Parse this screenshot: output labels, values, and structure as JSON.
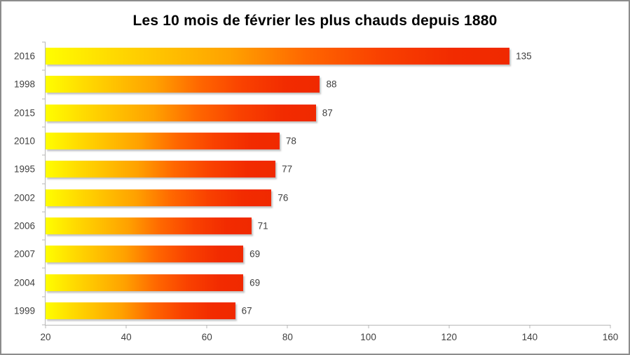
{
  "chart_data": {
    "type": "bar",
    "orientation": "horizontal",
    "title": "Les 10 mois de février les plus chauds depuis 1880",
    "categories": [
      "2016",
      "1998",
      "2015",
      "2010",
      "1995",
      "2002",
      "2006",
      "2007",
      "2004",
      "1999"
    ],
    "values": [
      135,
      88,
      87,
      78,
      77,
      76,
      71,
      69,
      69,
      67
    ],
    "value_labels": [
      "135",
      "88",
      "87",
      "78",
      "77",
      "76",
      "71",
      "69",
      "69",
      "67"
    ],
    "x_ticks": [
      20,
      40,
      60,
      80,
      100,
      120,
      140,
      160
    ],
    "xlim": [
      20,
      160
    ],
    "xlabel": "",
    "ylabel": "",
    "grid": false,
    "legend": null,
    "bar_gradient_stops": [
      "#FFFE00 0%",
      "#FFDB00 14%",
      "#FFA100 40%",
      "#FF6700 56%",
      "#F94100 72%",
      "#F22B00 88%",
      "#F02900 100%"
    ],
    "bar_shadow_color": "#B0B0B0",
    "axis_line_color": "#B7B7B7",
    "tick_label_color": "#404040",
    "title_color": "#000000",
    "background_color": "#FFFFFF",
    "frame_border_color": "#8C8C8C"
  }
}
